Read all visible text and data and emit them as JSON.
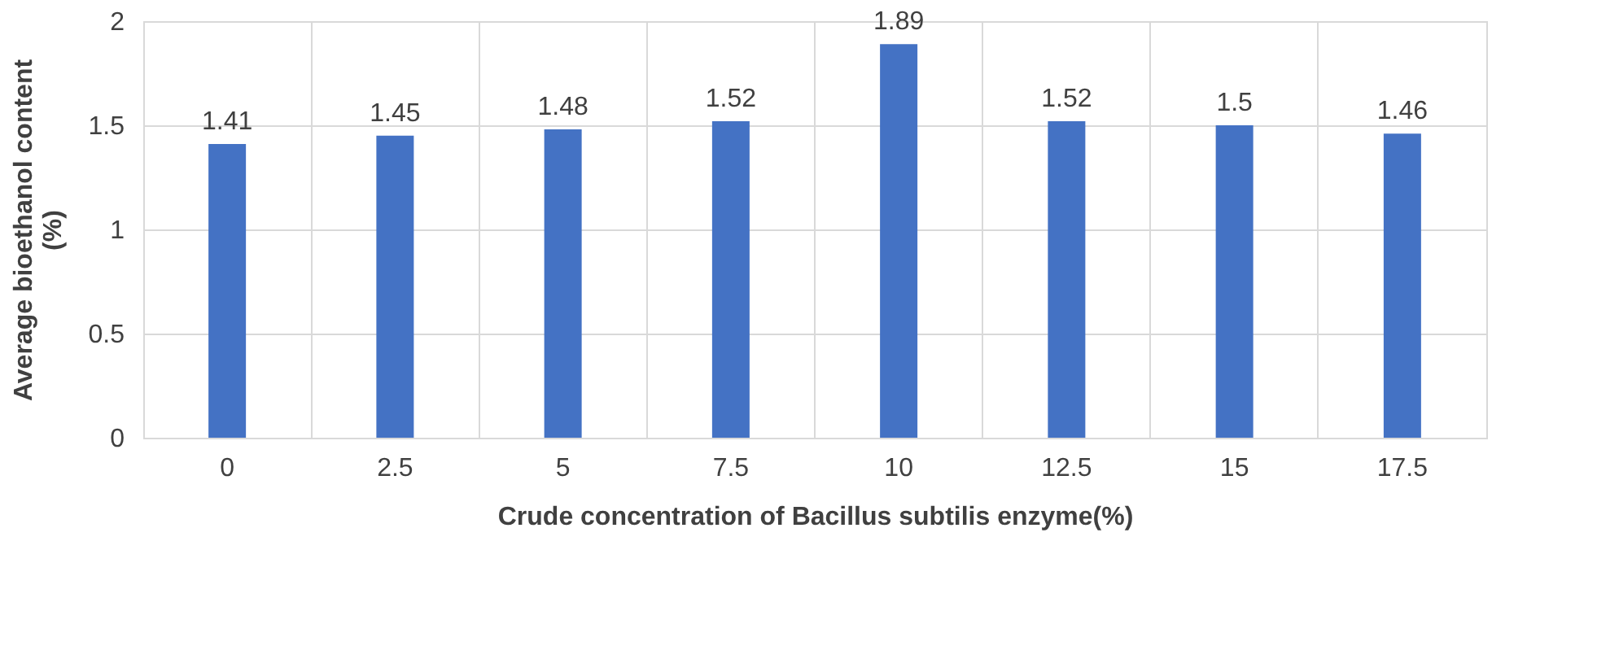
{
  "chart_data": {
    "type": "bar",
    "xlabel": "Crude concentration of Bacillus subtilis enzyme(%)",
    "ylabel": "Average bioethanol content (%)",
    "categories": [
      "0",
      "2.5",
      "5",
      "7.5",
      "10",
      "12.5",
      "15",
      "17.5"
    ],
    "values": [
      1.41,
      1.45,
      1.48,
      1.52,
      1.89,
      1.52,
      1.5,
      1.46
    ],
    "color": "#4472c4",
    "ylim": [
      0,
      2
    ],
    "yticks": [
      0,
      0.5,
      1,
      1.5,
      2
    ],
    "grid": true,
    "data_labels": true
  }
}
